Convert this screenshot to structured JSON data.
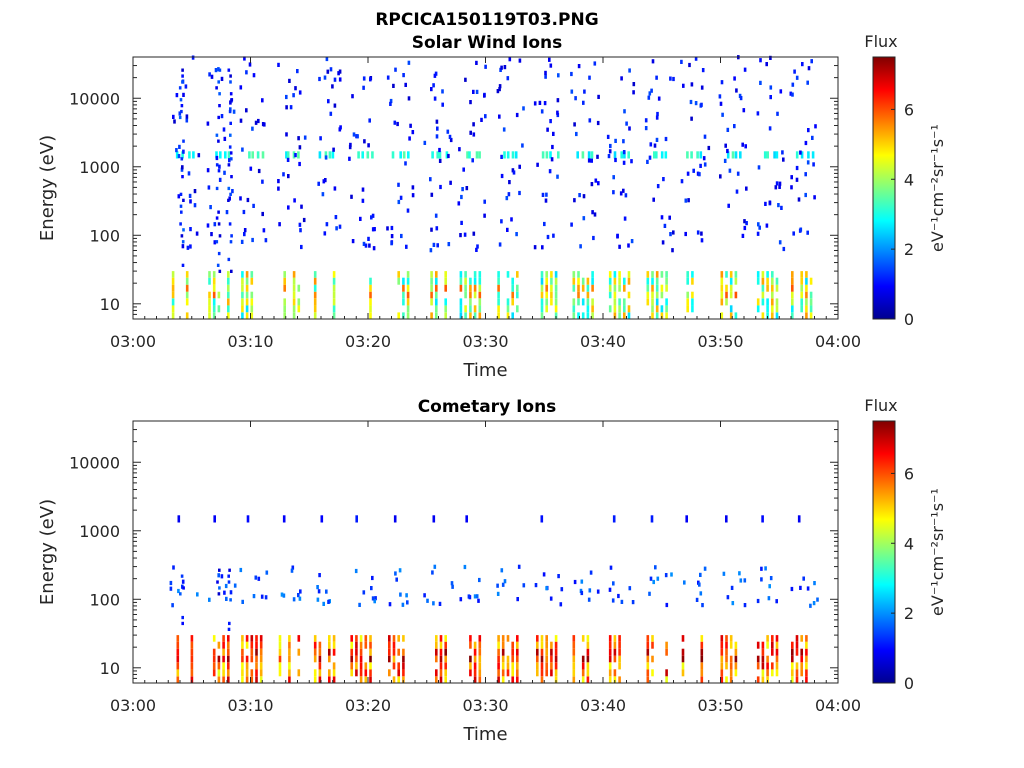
{
  "figure_title": "RPCICA150119T03.PNG",
  "colors": {
    "axis": "#262626",
    "colormap": [
      "#00008f",
      "#0000ff",
      "#0080ff",
      "#00ffff",
      "#80ff80",
      "#ffff00",
      "#ff8000",
      "#ff0000",
      "#800000"
    ]
  },
  "chart_data": [
    {
      "type": "heatmap",
      "title": "Solar Wind Ions",
      "xlabel": "Time",
      "ylabel": "Energy (eV)",
      "xlim": [
        "03:00",
        "04:00"
      ],
      "ylim": [
        6,
        40000
      ],
      "yscale": "log",
      "x_ticks": [
        "03:00",
        "03:10",
        "03:20",
        "03:30",
        "03:40",
        "03:50",
        "04:00"
      ],
      "y_ticks": [
        "10",
        "100",
        "1000",
        "10000"
      ],
      "y_tick_values": [
        10,
        100,
        1000,
        10000
      ],
      "grid": false,
      "colorbar": {
        "label": "Flux",
        "units": "eV⁻¹cm⁻²sr⁻¹s⁻¹",
        "range": [
          0,
          7.5
        ],
        "ticks": [
          "0",
          "2",
          "4",
          "6"
        ],
        "tick_values": [
          0,
          2,
          4,
          6
        ]
      },
      "scan_times_min": [
        4.1,
        7.2,
        10.0,
        13.2,
        16.2,
        19.3,
        22.5,
        25.7,
        28.6,
        31.8,
        35.1,
        38.2,
        41.3,
        44.5,
        47.5,
        50.8,
        53.9,
        56.8
      ],
      "low_band": {
        "energy_range_eV": [
          6,
          30
        ],
        "typical_flux": [
          2.5,
          5.5
        ]
      },
      "mid_band": {
        "energy_eV": 1500,
        "typical_flux": [
          2.5,
          3.5
        ]
      },
      "high_band": {
        "energy_range_eV": [
          60,
          40000
        ],
        "typical_flux": [
          0.5,
          1.5
        ]
      }
    },
    {
      "type": "heatmap",
      "title": "Cometary Ions",
      "xlabel": "Time",
      "ylabel": "Energy (eV)",
      "xlim": [
        "03:00",
        "04:00"
      ],
      "ylim": [
        6,
        40000
      ],
      "yscale": "log",
      "x_ticks": [
        "03:00",
        "03:10",
        "03:20",
        "03:30",
        "03:40",
        "03:50",
        "04:00"
      ],
      "y_ticks": [
        "10",
        "100",
        "1000",
        "10000"
      ],
      "y_tick_values": [
        10,
        100,
        1000,
        10000
      ],
      "grid": false,
      "colorbar": {
        "label": "Flux",
        "units": "eV⁻¹cm⁻²sr⁻¹s⁻¹",
        "range": [
          0,
          7.5
        ],
        "ticks": [
          "0",
          "2",
          "4",
          "6"
        ],
        "tick_values": [
          0,
          2,
          4,
          6
        ]
      },
      "scan_times_min": [
        4.1,
        7.2,
        10.0,
        13.2,
        16.2,
        19.3,
        22.5,
        25.7,
        28.6,
        31.8,
        35.1,
        38.2,
        41.3,
        44.5,
        47.5,
        50.8,
        53.9,
        56.8
      ],
      "low_band": {
        "energy_range_eV": [
          6,
          30
        ],
        "typical_flux": [
          4.5,
          7.0
        ]
      },
      "mid_band": {
        "energy_eV": 1500,
        "typical_flux": [
          0.8,
          1.2
        ]
      },
      "high_band": {
        "energy_range_eV": [
          80,
          300
        ],
        "typical_flux": [
          1.0,
          2.0
        ]
      }
    }
  ]
}
